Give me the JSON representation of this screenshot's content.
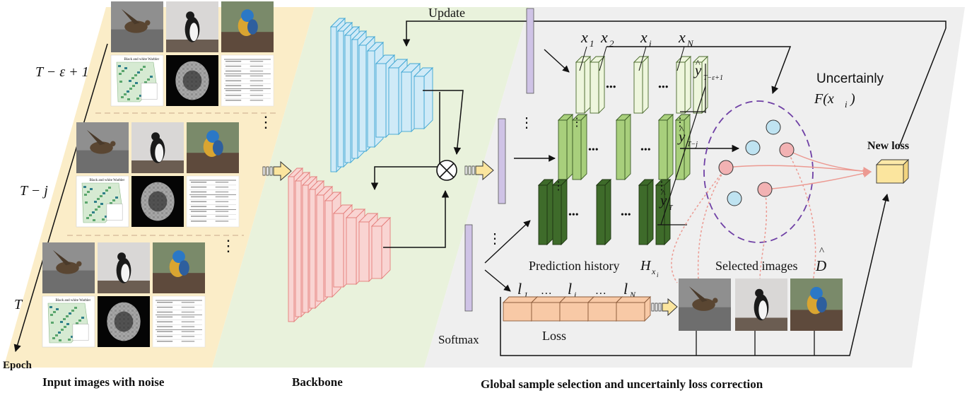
{
  "panels": {
    "input": "Input images with noise",
    "backbone": "Backbone",
    "selection": "Global sample selection and uncertainly loss correction"
  },
  "epoch_axis": {
    "label": "Epoch",
    "ticks": [
      "T − ε + 1",
      "T − j",
      "T"
    ]
  },
  "top": {
    "update": "Update",
    "x_labels": [
      {
        "v": "x",
        "s": "1"
      },
      {
        "v": "x",
        "s": "2"
      },
      {
        "v": "x",
        "s": "i"
      },
      {
        "v": "x",
        "s": "N"
      }
    ],
    "y_labels": [
      {
        "v": "y",
        "s": "T−ε+1"
      },
      {
        "v": "y",
        "s": "T−j"
      },
      {
        "v": "y",
        "s": "T"
      }
    ],
    "hat": "^",
    "ellipsis": "•••",
    "vdots": "⋮"
  },
  "uncertainly": {
    "title": "Uncertainly",
    "func": "F(x",
    "func_sub": "i",
    "func_close": ")"
  },
  "new_loss": "New loss",
  "prediction_history": {
    "label": "Prediction history",
    "sym": "H",
    "sub": "x",
    "subsub": "i"
  },
  "selected_images": {
    "label": "Selected images",
    "sym": "D"
  },
  "loss": {
    "label": "Loss",
    "items": [
      {
        "v": "l",
        "s": "1"
      },
      {
        "v": "…",
        "s": ""
      },
      {
        "v": "l",
        "s": "i"
      },
      {
        "v": "…",
        "s": ""
      },
      {
        "v": "l",
        "s": "N"
      }
    ]
  },
  "softmax": "Softmax",
  "thumb_legend_title": "Black and white Warbler",
  "colors": {
    "input_bg": "#fbedc8",
    "backbone_bg": "#e9f2dc",
    "selection_bg": "#efefef",
    "blue_block": "#cfeaf7",
    "blue_stroke": "#3ea6d3",
    "red_block": "#f9d4d2",
    "red_stroke": "#e47e7b",
    "light_green": "#eef6dd",
    "mid_green": "#a8cf7c",
    "dark_green": "#3e6b2a",
    "purple_bar": "#cfc3e6",
    "loss_cell": "#f8c9a6",
    "new_loss_box": "#fbe59e",
    "dot_blue": "#bfe3f1",
    "dot_red": "#f2b2b3",
    "ellipse": "#6f40a5",
    "pink_line": "#ec9a92"
  }
}
